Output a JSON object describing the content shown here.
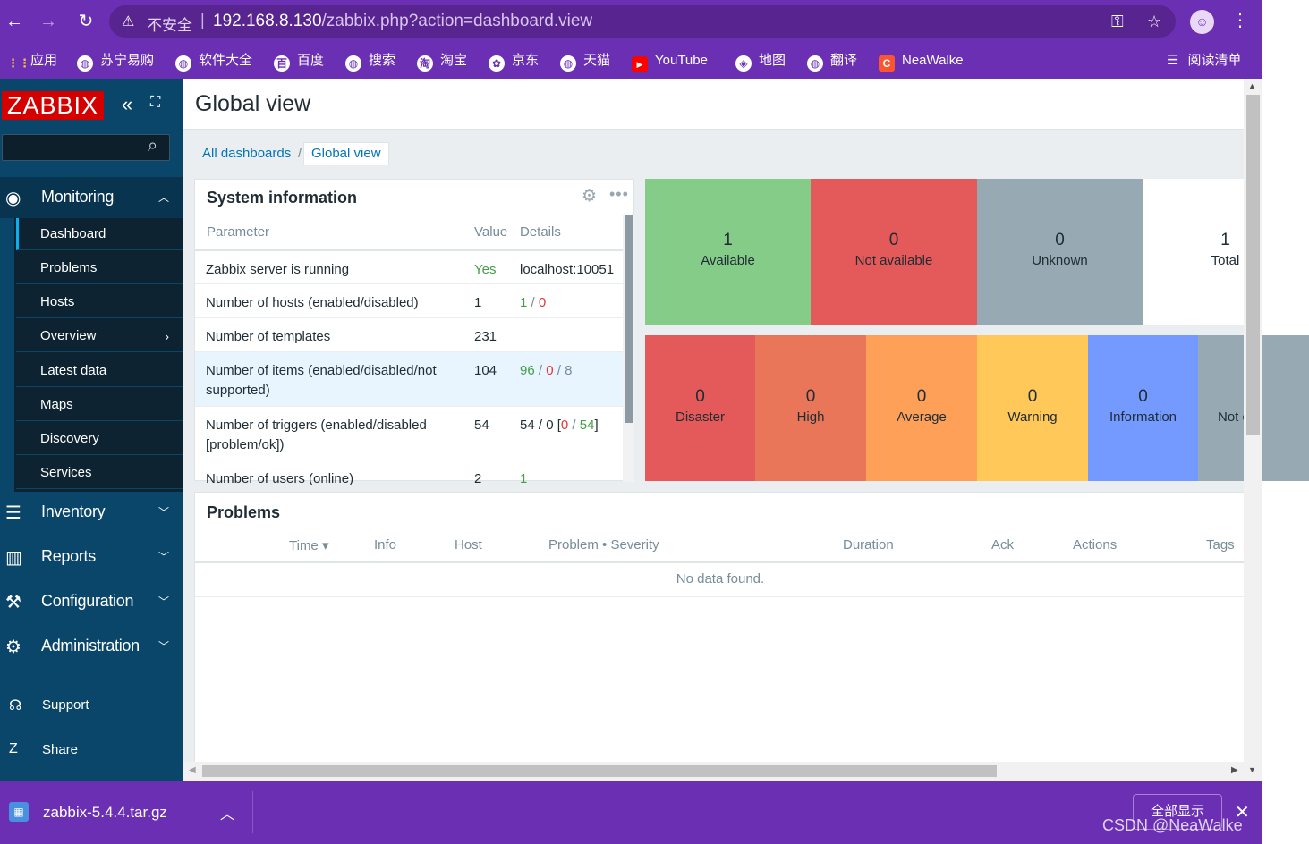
{
  "browser": {
    "insecure_label": "不安全",
    "url_host": "192.168.8.130",
    "url_path": "/zabbix.php?action=dashboard.view",
    "bookmarks": [
      {
        "label": "应用",
        "icon": "apps-grid-icon"
      },
      {
        "label": "苏宁易购",
        "icon": "globe-icon"
      },
      {
        "label": "软件大全",
        "icon": "globe-icon"
      },
      {
        "label": "百度",
        "icon": "baidu-icon"
      },
      {
        "label": "搜索",
        "icon": "globe-icon"
      },
      {
        "label": "淘宝",
        "icon": "taobao-icon"
      },
      {
        "label": "京东",
        "icon": "jd-icon"
      },
      {
        "label": "天猫",
        "icon": "globe-icon"
      },
      {
        "label": "YouTube",
        "icon": "youtube-icon"
      },
      {
        "label": "地图",
        "icon": "maps-icon"
      },
      {
        "label": "翻译",
        "icon": "globe-icon"
      },
      {
        "label": "NeaWalke",
        "icon": "csdn-icon"
      }
    ],
    "reading_list": "阅读清单"
  },
  "sidebar": {
    "logo": "ZABBIX",
    "monitoring": "Monitoring",
    "monitoring_items": [
      {
        "label": "Dashboard"
      },
      {
        "label": "Problems"
      },
      {
        "label": "Hosts"
      },
      {
        "label": "Overview"
      },
      {
        "label": "Latest data"
      },
      {
        "label": "Maps"
      },
      {
        "label": "Discovery"
      },
      {
        "label": "Services"
      }
    ],
    "sections": [
      "Inventory",
      "Reports",
      "Configuration",
      "Administration"
    ],
    "support": "Support",
    "share": "Share"
  },
  "page": {
    "title": "Global view",
    "breadcrumb_all": "All dashboards",
    "breadcrumb_sep": "/",
    "breadcrumb_current": "Global view"
  },
  "system_info": {
    "title": "System information",
    "headers": {
      "parameter": "Parameter",
      "value": "Value",
      "details": "Details"
    },
    "rows": [
      {
        "param": "Zabbix server is running",
        "value": "Yes",
        "details": "localhost:10051"
      },
      {
        "param": "Number of hosts (enabled/disabled)",
        "value": "1",
        "d1": "1",
        "d2": "0"
      },
      {
        "param": "Number of templates",
        "value": "231"
      },
      {
        "param": "Number of items (enabled/disabled/not supported)",
        "value": "104",
        "d1": "96",
        "d2": "0",
        "d3": "8"
      },
      {
        "param": "Number of triggers (enabled/disabled [problem/ok])",
        "value": "54",
        "d1": "54",
        "d2": "0",
        "d3": "0",
        "d4": "54"
      },
      {
        "param": "Number of users (online)",
        "value": "2",
        "d1": "1"
      }
    ]
  },
  "host_availability": [
    {
      "count": "1",
      "label": "Available",
      "color": "#86cc89"
    },
    {
      "count": "0",
      "label": "Not available",
      "color": "#e45959"
    },
    {
      "count": "0",
      "label": "Unknown",
      "color": "#97aab3"
    },
    {
      "count": "1",
      "label": "Total",
      "color": "#ffffff"
    }
  ],
  "severities": [
    {
      "count": "0",
      "label": "Disaster",
      "color": "#e45959"
    },
    {
      "count": "0",
      "label": "High",
      "color": "#e97659"
    },
    {
      "count": "0",
      "label": "Average",
      "color": "#ffa059"
    },
    {
      "count": "0",
      "label": "Warning",
      "color": "#ffc859"
    },
    {
      "count": "0",
      "label": "Information",
      "color": "#7499ff"
    },
    {
      "count": "",
      "label": "Not c",
      "color": "#97aab3"
    }
  ],
  "problems": {
    "title": "Problems",
    "columns": [
      "Time ▾",
      "Info",
      "Host",
      "Problem • Severity",
      "Duration",
      "Ack",
      "Actions",
      "Tags"
    ],
    "empty": "No data found."
  },
  "download": {
    "filename": "zabbix-5.4.4.tar.gz",
    "show_all": "全部显示",
    "watermark": "CSDN @NeaWalke"
  }
}
